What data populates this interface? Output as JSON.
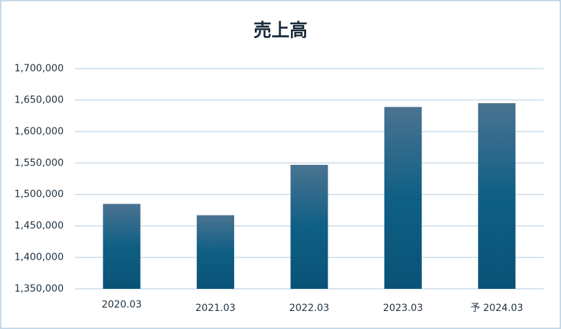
{
  "chart_data": {
    "type": "bar",
    "title": "売上高",
    "categories": [
      "2020.03",
      "2021.03",
      "2022.03",
      "2023.03",
      "予 2024.03"
    ],
    "values": [
      1485000,
      1467000,
      1547000,
      1639000,
      1645000
    ],
    "color": "#0f5f85",
    "ylim": [
      1350000,
      1700000
    ],
    "yticks": [
      {
        "value": 1350000,
        "label": "1,350,000"
      },
      {
        "value": 1400000,
        "label": "1,400,000"
      },
      {
        "value": 1450000,
        "label": "1,450,000"
      },
      {
        "value": 1500000,
        "label": "1,500,000"
      },
      {
        "value": 1550000,
        "label": "1,550,000"
      },
      {
        "value": 1600000,
        "label": "1,600,000"
      },
      {
        "value": 1650000,
        "label": "1,650,000"
      },
      {
        "value": 1700000,
        "label": "1,700,000"
      }
    ],
    "grid": true
  }
}
